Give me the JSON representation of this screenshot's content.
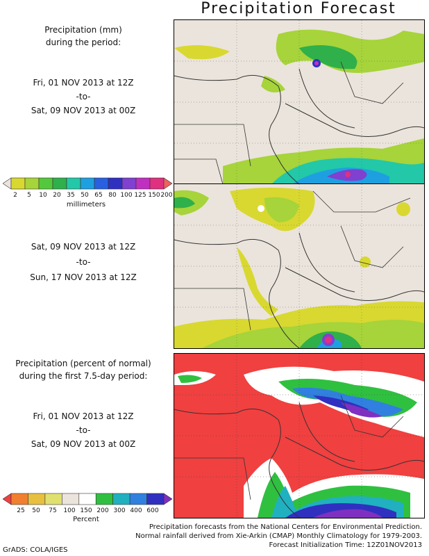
{
  "title": "Precipitation Forecast",
  "panel1": {
    "heading_line1": "Precipitation (mm)",
    "heading_line2": "during the period:",
    "start": "Fri, 01 NOV 2013 at 12Z",
    "to": "-to-",
    "end": "Sat, 09 NOV 2013 at 00Z"
  },
  "panel2": {
    "start": "Sat, 09 NOV 2013 at 12Z",
    "to": "-to-",
    "end": "Sun, 17 NOV 2013 at 12Z"
  },
  "panel3": {
    "heading_line1": "Precipitation (percent of normal)",
    "heading_line2": "during the first 7.5-day period:",
    "start": "Fri, 01 NOV 2013 at 12Z",
    "to": "-to-",
    "end": "Sat, 09 NOV 2013 at 00Z"
  },
  "colorbar_mm": {
    "ticks": [
      "2",
      "5",
      "10",
      "20",
      "35",
      "50",
      "65",
      "80",
      "100",
      "125",
      "150",
      "200"
    ],
    "colors": [
      "#ebe4dc",
      "#d8d830",
      "#a6d43a",
      "#54c83c",
      "#2fb04a",
      "#22c8a8",
      "#1ea0e0",
      "#2860e0",
      "#3030c0",
      "#8040d0",
      "#c030c0",
      "#e03080",
      "#f06060"
    ],
    "unit": "millimeters"
  },
  "colorbar_pct": {
    "ticks": [
      "25",
      "50",
      "75",
      "100",
      "150",
      "200",
      "300",
      "400",
      "600"
    ],
    "colors": [
      "#f04040",
      "#f08030",
      "#e8c040",
      "#e0e070",
      "#ebe4dc",
      "#ffffff",
      "#30c040",
      "#20b0c0",
      "#3080e0",
      "#3030c0",
      "#8030c0"
    ],
    "unit": "Percent"
  },
  "credits": {
    "line1": "Precipitation forecasts from the National Centers for Environmental Prediction.",
    "line2": "Normal rainfall derived from Xie-Arkin (CMAP) Monthly Climatology for 1979-2003.",
    "line3": "Forecast Initialization Time: 12Z01NOV2013"
  },
  "footer": "GrADS: COLA/IGES"
}
